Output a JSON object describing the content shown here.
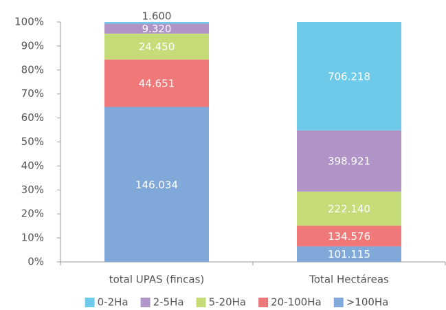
{
  "chart_data": {
    "type": "bar",
    "stacked": "percent",
    "categories": [
      "total UPAS (fincas)",
      "Total Hectáreas"
    ],
    "series": [
      {
        "name": "0-2Ha",
        "color": "#6ecae8",
        "values": [
          1600,
          706218
        ],
        "value_labels": [
          "1.600",
          "706.218"
        ]
      },
      {
        "name": "2-5Ha",
        "color": "#b094c8",
        "values": [
          9320,
          398921
        ],
        "value_labels": [
          "9.320",
          "398.921"
        ]
      },
      {
        "name": "5-20Ha",
        "color": "#c5dc78",
        "values": [
          24450,
          222140
        ],
        "value_labels": [
          "24.450",
          "222.140"
        ]
      },
      {
        "name": "20-100Ha",
        "color": "#f07878",
        "values": [
          44651,
          134576
        ],
        "value_labels": [
          "44.651",
          "134.576"
        ]
      },
      {
        "name": ">100Ha",
        "color": "#80a8d8",
        "values": [
          146034,
          101115
        ],
        "value_labels": [
          "146.034",
          "101.115"
        ]
      }
    ],
    "ylim": [
      0,
      100
    ],
    "yticks": [
      {
        "value": 0,
        "label": "0%"
      },
      {
        "value": 10,
        "label": "10%"
      },
      {
        "value": 20,
        "label": "20%"
      },
      {
        "value": 30,
        "label": "30%"
      },
      {
        "value": 40,
        "label": "40%"
      },
      {
        "value": 50,
        "label": "50%"
      },
      {
        "value": 60,
        "label": "60%"
      },
      {
        "value": 70,
        "label": "70%"
      },
      {
        "value": 80,
        "label": "80%"
      },
      {
        "value": 90,
        "label": "90%"
      },
      {
        "value": 100,
        "label": "100%"
      }
    ],
    "grid": false,
    "legend": "bottom"
  }
}
